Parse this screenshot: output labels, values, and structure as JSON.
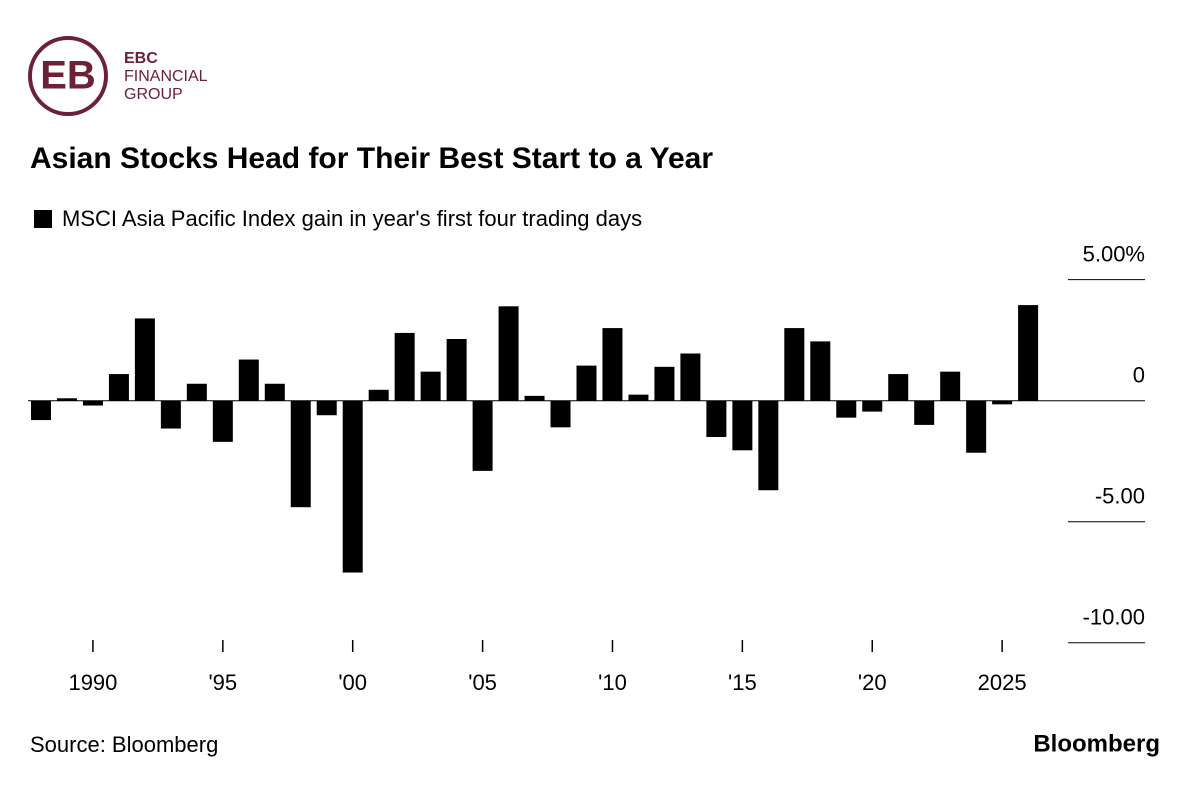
{
  "logo": {
    "line1": "EBC",
    "line2": "FINANCIAL",
    "line3": "GROUP"
  },
  "chart_data": {
    "type": "bar",
    "title": "Asian Stocks Head for Their Best Start to a Year",
    "x": [
      1988,
      1989,
      1990,
      1991,
      1992,
      1993,
      1994,
      1995,
      1996,
      1997,
      1998,
      1999,
      2000,
      2001,
      2002,
      2003,
      2004,
      2005,
      2006,
      2007,
      2008,
      2009,
      2010,
      2011,
      2012,
      2013,
      2014,
      2015,
      2016,
      2017,
      2018,
      2019,
      2020,
      2021,
      2022,
      2023,
      2024,
      2025,
      2026
    ],
    "series": [
      {
        "name": "MSCI Asia Pacific Index gain in year's first four trading days",
        "color": "#000000",
        "values": [
          -0.8,
          0.1,
          -0.2,
          1.1,
          3.4,
          -1.15,
          0.7,
          -1.7,
          1.7,
          0.7,
          -4.4,
          -0.6,
          -7.1,
          0.45,
          2.8,
          1.2,
          2.55,
          -2.9,
          3.9,
          0.2,
          -1.1,
          1.45,
          3.0,
          0.25,
          1.4,
          1.95,
          -1.5,
          -2.05,
          -3.7,
          3.0,
          2.45,
          -0.7,
          -0.45,
          1.1,
          -1.0,
          1.2,
          -2.15,
          -0.15,
          3.95
        ]
      }
    ],
    "xlim": [
      1987.5,
      2030.5
    ],
    "xticks": [
      1990,
      {
        "value": 1995,
        "label": "'95"
      },
      {
        "value": 2000,
        "label": "'00"
      },
      {
        "value": 2005,
        "label": "'05"
      },
      {
        "value": 2010,
        "label": "'10"
      },
      {
        "value": 2015,
        "label": "'15"
      },
      {
        "value": 2020,
        "label": "'20"
      },
      2025
    ],
    "ylim": [
      -10.3,
      5.4
    ],
    "yticks": [
      {
        "value": 5,
        "label": "5.00%"
      },
      0,
      {
        "value": -5,
        "label": "-5.00"
      },
      {
        "value": -10,
        "label": "-10.00"
      }
    ],
    "source": "Source: Bloomberg",
    "brand": "Bloomberg"
  }
}
